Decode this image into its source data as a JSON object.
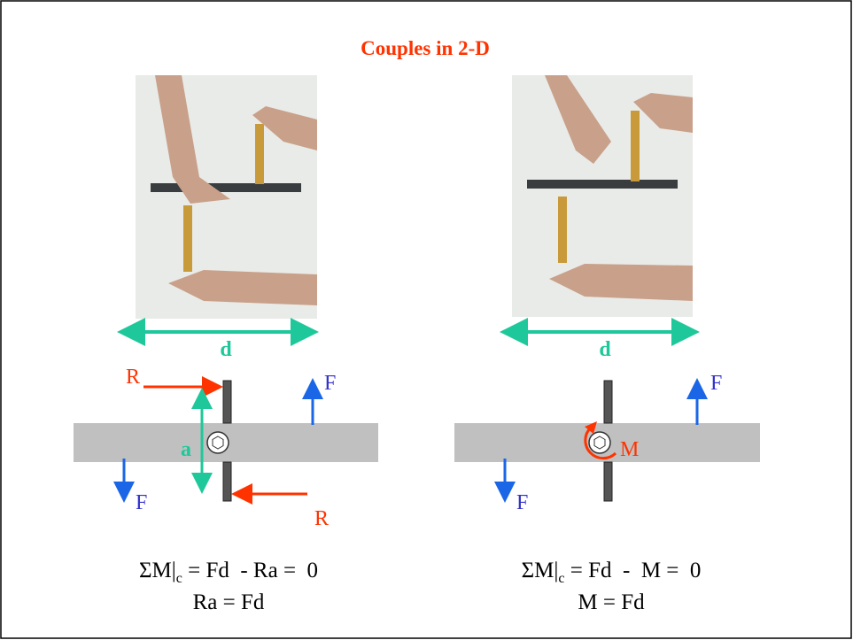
{
  "title": "Couples in 2-D",
  "left": {
    "distance_label": "d",
    "r_top": "R",
    "r_bottom": "R",
    "f_up": "F",
    "f_down": "F",
    "a": "a",
    "equation": {
      "lhs": "ΣM|",
      "subscript": "c",
      "rhs": " = Fd  - Ra =  0",
      "line2": "Ra = Fd"
    }
  },
  "right": {
    "distance_label": "d",
    "f_up": "F",
    "f_down": "F",
    "m": "M",
    "equation": {
      "lhs": "ΣM|",
      "subscript": "c",
      "rhs": " = Fd  -  M =  0",
      "line2": "M = Fd"
    }
  }
}
